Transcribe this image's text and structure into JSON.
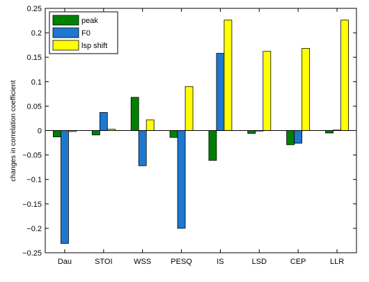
{
  "chart_data": {
    "type": "bar",
    "title": "",
    "xlabel": "",
    "ylabel": "changes in correlation coefficient",
    "categories": [
      "Dau",
      "STOI",
      "WSS",
      "PESQ",
      "IS",
      "LSD",
      "CEP",
      "LLR"
    ],
    "ylim": [
      -0.25,
      0.25
    ],
    "yticks": [
      -0.25,
      -0.2,
      -0.15,
      -0.1,
      -0.05,
      0,
      0.05,
      0.1,
      0.15,
      0.2,
      0.25
    ],
    "ytick_labels": [
      "−0.25",
      "−0.2",
      "−0.15",
      "−0.1",
      "−0.05",
      "0",
      "0.05",
      "0.1",
      "0.15",
      "0.2",
      "0.25"
    ],
    "grid": false,
    "legend_position": "top-left",
    "series": [
      {
        "name": "peak",
        "color": "#008000",
        "values": [
          -0.013,
          -0.009,
          0.068,
          -0.014,
          -0.061,
          -0.006,
          -0.029,
          -0.005
        ]
      },
      {
        "name": "F0",
        "color": "#1f77d0",
        "values": [
          -0.231,
          0.037,
          -0.072,
          -0.2,
          0.158,
          -0.001,
          -0.026,
          0.001
        ]
      },
      {
        "name": "lsp shift",
        "color": "#ffff00",
        "values": [
          -0.002,
          0.003,
          0.022,
          0.09,
          0.226,
          0.162,
          0.168,
          0.226
        ]
      }
    ]
  }
}
